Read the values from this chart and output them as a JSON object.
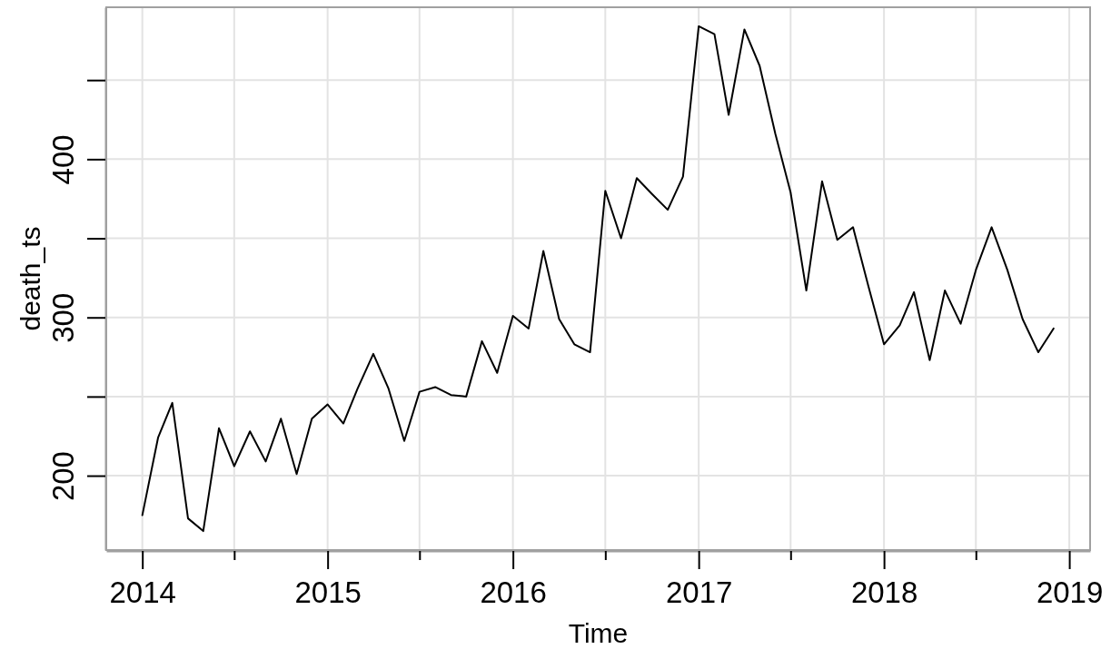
{
  "chart_data": {
    "type": "line",
    "xlabel": "Time",
    "ylabel": "death_ts",
    "x": [
      "2014-01",
      "2014-02",
      "2014-03",
      "2014-04",
      "2014-05",
      "2014-06",
      "2014-07",
      "2014-08",
      "2014-09",
      "2014-10",
      "2014-11",
      "2014-12",
      "2015-01",
      "2015-02",
      "2015-03",
      "2015-04",
      "2015-05",
      "2015-06",
      "2015-07",
      "2015-08",
      "2015-09",
      "2015-10",
      "2015-11",
      "2015-12",
      "2016-01",
      "2016-02",
      "2016-03",
      "2016-04",
      "2016-05",
      "2016-06",
      "2016-07",
      "2016-08",
      "2016-09",
      "2016-10",
      "2016-11",
      "2016-12",
      "2017-01",
      "2017-02",
      "2017-03",
      "2017-04",
      "2017-05",
      "2017-06",
      "2017-07",
      "2017-08",
      "2017-09",
      "2017-10",
      "2017-11",
      "2017-12",
      "2018-01",
      "2018-02",
      "2018-03",
      "2018-04",
      "2018-05",
      "2018-06",
      "2018-07",
      "2018-08",
      "2018-09",
      "2018-10",
      "2018-11",
      "2018-12"
    ],
    "series": [
      {
        "color": "#000000",
        "values": [
          175,
          224,
          246,
          173,
          165,
          230,
          206,
          228,
          209,
          236,
          201,
          236,
          245,
          233,
          255,
          277,
          255,
          222,
          253,
          256,
          251,
          250,
          285,
          265,
          301,
          293,
          342,
          299,
          283,
          278,
          380,
          350,
          388,
          378,
          368,
          389,
          484,
          479,
          428,
          482,
          459,
          416,
          379,
          317,
          386,
          349,
          357,
          320,
          283,
          295,
          316,
          273,
          317,
          296,
          330,
          357,
          330,
          299,
          278,
          293
        ]
      }
    ],
    "xlim": [
      "2013-10-22",
      "2019-02-11"
    ],
    "ylim": [
      153,
      496
    ],
    "xticks": [
      "2014",
      {
        "value": "2014-07",
        "label": null
      },
      "2015",
      {
        "value": "2015-07",
        "label": null
      },
      "2016",
      {
        "value": "2016-07",
        "label": null
      },
      "2017",
      {
        "value": "2017-07",
        "label": null
      },
      "2018",
      {
        "value": "2018-07",
        "label": null
      },
      "2019"
    ],
    "yticks": [
      200,
      {
        "value": 250,
        "label": null
      },
      300,
      {
        "value": 350,
        "label": null
      },
      400,
      {
        "value": 450,
        "label": null
      }
    ],
    "grid": true,
    "line_style": "solid"
  }
}
